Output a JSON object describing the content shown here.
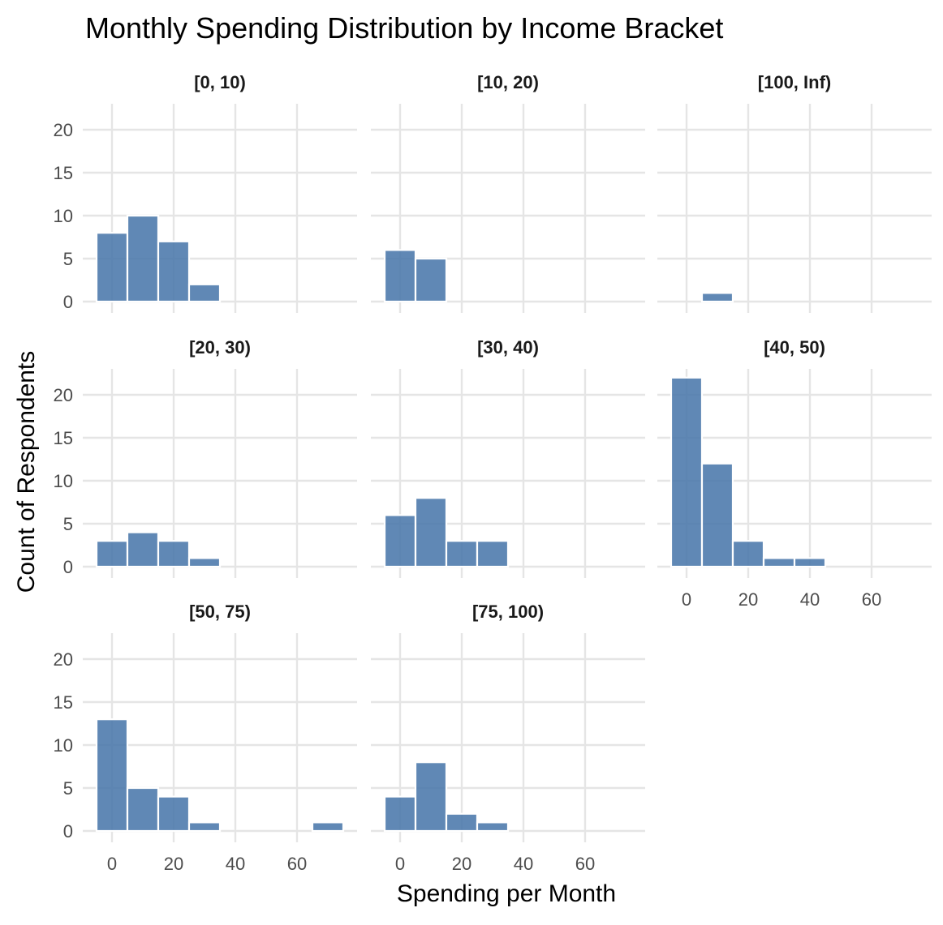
{
  "chart_data": {
    "type": "bar",
    "subtype": "faceted-histogram",
    "title": "Monthly Spending Distribution by Income Bracket",
    "xlabel": "Spending per Month",
    "ylabel": "Count of Respondents",
    "bin_width": 10,
    "bin_starts": [
      -5,
      5,
      15,
      25,
      35,
      45,
      55,
      65
    ],
    "xlim": [
      -5,
      75
    ],
    "ylim": [
      0,
      23
    ],
    "x_ticks": [
      "0",
      "20",
      "40",
      "60"
    ],
    "y_ticks": [
      "0",
      "5",
      "10",
      "15",
      "20"
    ],
    "grid": true,
    "legend": "none",
    "color": "#4a78ab",
    "facets": [
      {
        "label": "[0, 10)",
        "counts": [
          8,
          10,
          7,
          2,
          0,
          0,
          0,
          0
        ]
      },
      {
        "label": "[10, 20)",
        "counts": [
          6,
          5,
          0,
          0,
          0,
          0,
          0,
          0
        ]
      },
      {
        "label": "[100, Inf)",
        "counts": [
          0,
          1,
          0,
          0,
          0,
          0,
          0,
          0
        ]
      },
      {
        "label": "[20, 30)",
        "counts": [
          3,
          4,
          3,
          1,
          0,
          0,
          0,
          0
        ]
      },
      {
        "label": "[30, 40)",
        "counts": [
          6,
          8,
          3,
          3,
          0,
          0,
          0,
          0
        ]
      },
      {
        "label": "[40, 50)",
        "counts": [
          22,
          12,
          3,
          1,
          1,
          0,
          0,
          0
        ]
      },
      {
        "label": "[50, 75)",
        "counts": [
          13,
          5,
          4,
          1,
          0,
          0,
          0,
          1
        ]
      },
      {
        "label": "[75, 100)",
        "counts": [
          4,
          8,
          2,
          1,
          0,
          0,
          0,
          0
        ]
      }
    ]
  }
}
